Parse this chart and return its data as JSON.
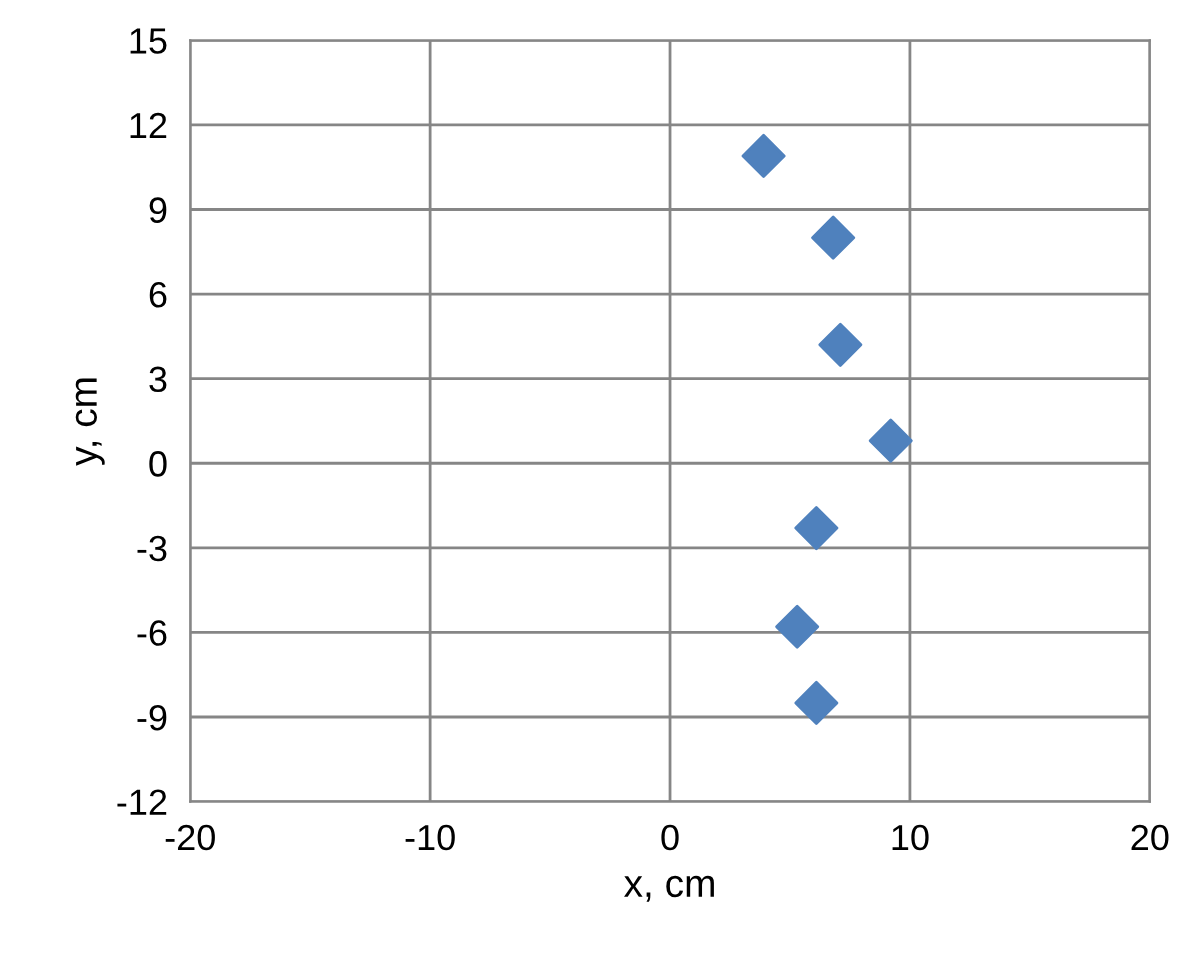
{
  "chart_data": {
    "type": "scatter",
    "xlabel": "x, cm",
    "ylabel": "y, cm",
    "series": [
      {
        "color": "#4f81bd",
        "x": [
          3.9,
          6.8,
          7.1,
          9.2,
          6.1,
          5.3,
          6.1
        ],
        "values": [
          10.9,
          8.0,
          4.2,
          0.8,
          -2.3,
          -5.8,
          -8.5
        ]
      }
    ],
    "xlim": [
      -20,
      20
    ],
    "xticks": [
      -20,
      -10,
      0,
      10,
      20
    ],
    "ylim": [
      -12,
      15
    ],
    "yticks": [
      -12,
      -9,
      -6,
      -3,
      0,
      3,
      6,
      9,
      12,
      15
    ],
    "grid": true,
    "marker": "diamond",
    "legend": false
  }
}
